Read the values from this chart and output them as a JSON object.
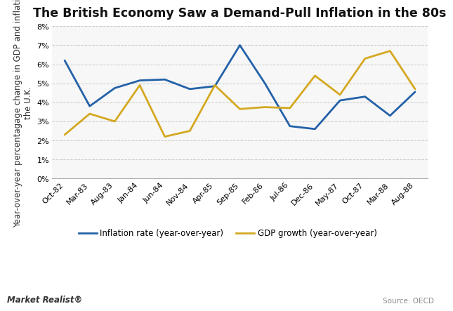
{
  "title": "The British Economy Saw a Demand-Pull Inflation in the 80s",
  "ylabel": "Year-over-year percentagage change in GDP and inflation in\nthe U.K.",
  "source": "Source: OECD",
  "watermark": "Market Realist",
  "x_labels": [
    "Oct-82",
    "Mar-83",
    "Aug-83",
    "Jan-84",
    "Jun-84",
    "Nov-84",
    "Apr-85",
    "Sep-85",
    "Feb-86",
    "Jul-86",
    "Dec-86",
    "May-87",
    "Oct-87",
    "Mar-88",
    "Aug-88"
  ],
  "inflation_y": [
    6.2,
    3.8,
    4.75,
    5.15,
    5.2,
    4.7,
    4.85,
    7.0,
    5.0,
    2.75,
    2.6,
    4.1,
    4.3,
    3.3,
    4.55
  ],
  "gdp_y": [
    2.3,
    3.4,
    3.0,
    4.9,
    2.2,
    2.5,
    4.9,
    3.65,
    3.75,
    3.7,
    5.4,
    4.4,
    6.3,
    6.7,
    4.7
  ],
  "inflation_color": "#2361a8",
  "gdp_color": "#d4a820",
  "background_color": "#ffffff",
  "plot_bg_color": "#f7f7f7",
  "ylim": [
    0,
    8
  ],
  "yticks": [
    0,
    1,
    2,
    3,
    4,
    5,
    6,
    7,
    8
  ],
  "grid_color": "#c8c8c8",
  "title_fontsize": 12.5,
  "axis_label_fontsize": 8.5,
  "tick_fontsize": 8,
  "legend_fontsize": 8.5,
  "line_width": 2.0
}
